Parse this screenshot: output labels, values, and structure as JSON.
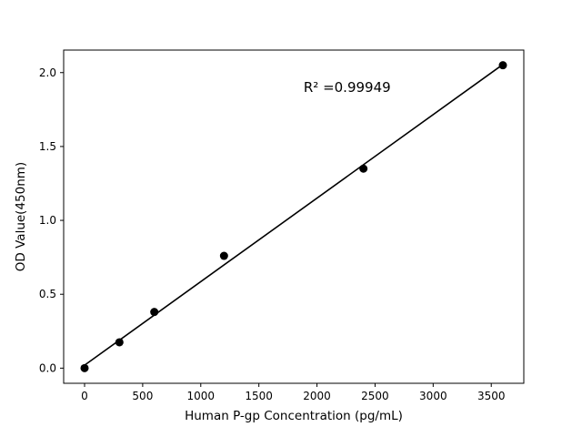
{
  "figure": {
    "background": "#ffffff"
  },
  "chart_data": {
    "type": "scatter",
    "title": "",
    "xlabel": "Human P-gp Concentration (pg/mL)",
    "ylabel": "OD Value(450nm)",
    "x": [
      0,
      300,
      600,
      1200,
      2400,
      3600
    ],
    "y": [
      0.0,
      0.175,
      0.38,
      0.76,
      1.35,
      2.05
    ],
    "fit_line": {
      "x1": 0,
      "y1": 0.02,
      "x2": 3600,
      "y2": 2.055
    },
    "annotation": {
      "text": "R² =0.99949",
      "x": 2260,
      "y": 1.87
    },
    "x_ticks": [
      0,
      500,
      1000,
      1500,
      2000,
      2500,
      3000,
      3500
    ],
    "y_ticks": [
      "0.0",
      "0.5",
      "1.0",
      "1.5",
      "2.0"
    ],
    "xlim": [
      -180,
      3780
    ],
    "ylim": [
      -0.1025,
      2.1525
    ],
    "grid": false,
    "legend": false,
    "point_color": "#000000",
    "line_color": "#000000",
    "axis_color": "#000000"
  }
}
